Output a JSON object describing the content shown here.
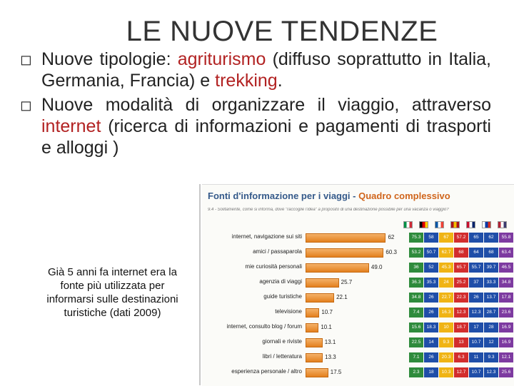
{
  "title": "LE NUOVE TENDENZE",
  "bullets": [
    {
      "mark": "◻",
      "parts": [
        {
          "t": "Nuove tipologie: ",
          "hl": false
        },
        {
          "t": "agriturismo",
          "hl": true
        },
        {
          "t": " (diffuso soprattutto in Italia, Germania, Francia) e ",
          "hl": false
        },
        {
          "t": "trekking",
          "hl": true
        },
        {
          "t": ".",
          "hl": false
        }
      ]
    },
    {
      "mark": "◻",
      "parts": [
        {
          "t": "Nuove modalità di organizzare il viaggio, attraverso ",
          "hl": false
        },
        {
          "t": "internet",
          "hl": true
        },
        {
          "t": " (ricerca di informazioni e pagamenti di trasporti e alloggi )",
          "hl": false
        }
      ]
    }
  ],
  "note": "Già 5 anni fa internet era la fonte più utilizzata per informarsi sulle destinazioni turistiche (dati 2009)",
  "panel": {
    "heading_a": "Fonti d'informazione per i viaggi",
    "heading_sep": " - ",
    "heading_b": "Quadro complessivo",
    "subheading": "9.4 - Solitamente, come si informa, dove \"raccoglie l'idea\" a proposito di una destinazione possibile per una vacanza o viaggio?",
    "flag_colors": [
      [
        "#009246",
        "#ffffff",
        "#ce2b37"
      ],
      [
        "#000000",
        "#dd0000",
        "#ffce00"
      ],
      [
        "#0055a4",
        "#ffffff",
        "#ef4135"
      ],
      [
        "#aa151b",
        "#f1bf00",
        "#aa151b"
      ],
      [
        "#c8102e",
        "#ffffff",
        "#012169"
      ],
      [
        "#ffffff",
        "#0039a6",
        "#d52b1e"
      ],
      [
        "#b22234",
        "#ffffff",
        "#3c3b6e"
      ]
    ]
  },
  "chart_data": {
    "type": "bar",
    "categories": [
      "internet, navigazione sui siti",
      "amici / passaparola",
      "mie curiosità personali",
      "agenzia di viaggi",
      "guide turistiche",
      "televisione",
      "internet, consulto blog / forum",
      "giornali e riviste",
      "libri / letteratura",
      "esperienza personale / altro"
    ],
    "values": [
      62,
      60.3,
      49.0,
      25.7,
      22.1,
      10.7,
      10.1,
      13.1,
      13.3,
      17.5
    ],
    "value_labels": [
      "62",
      "60.3",
      "49.0",
      "25.7",
      "22.1",
      "10.7",
      "10.1",
      "13.1",
      "13.3",
      "17.5"
    ],
    "xlim": [
      0,
      70
    ],
    "table": [
      [
        "75.3",
        "58",
        "67",
        "57.2",
        "65",
        "62",
        "55.8"
      ],
      [
        "53.2",
        "50.7",
        "62.7",
        "68",
        "64",
        "68",
        "63.4"
      ],
      [
        "36",
        "52",
        "45.3",
        "65.7",
        "55.7",
        "39.7",
        "46.5"
      ],
      [
        "36.3",
        "35.3",
        "24",
        "25.2",
        "37",
        "33.3",
        "34.8"
      ],
      [
        "34.8",
        "26",
        "22.7",
        "22.3",
        "26",
        "13.7",
        "17.8"
      ],
      [
        "7.4",
        "26",
        "16.3",
        "12.3",
        "12.3",
        "28.7",
        "23.6"
      ],
      [
        "15.6",
        "18.3",
        "10",
        "18.7",
        "17",
        "28",
        "16.9"
      ],
      [
        "22.5",
        "14",
        "9.3",
        "13",
        "10.7",
        "12",
        "16.9"
      ],
      [
        "7.1",
        "26",
        "20.3",
        "6.3",
        "11",
        "9.3",
        "12.1"
      ],
      [
        "2.3",
        "18",
        "10.3",
        "12.7",
        "10.7",
        "12.3",
        "25.6"
      ]
    ],
    "row_colors": [
      "#2e8b3c",
      "#1f4ea8",
      "#f0b414",
      "#d22d2d",
      "#1f4ea8",
      "#1f4ea8",
      "#7d3aa0"
    ]
  }
}
